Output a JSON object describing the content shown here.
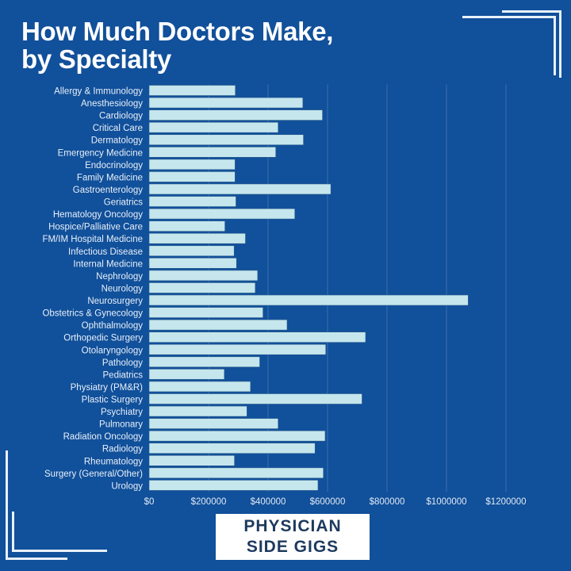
{
  "title_line1": "How Much Doctors Make,",
  "title_line2": "by Specialty",
  "logo": {
    "line1": "PHYSICIAN",
    "line2": "SIDE GIGS"
  },
  "colors": {
    "background": "#11509a",
    "bar": "#c5e6ec",
    "text": "#ffffff",
    "logo_text": "#1d3a5e"
  },
  "chart_data": {
    "type": "bar",
    "orientation": "horizontal",
    "title": "How Much Doctors Make, by Specialty",
    "xlabel": "",
    "ylabel": "",
    "xlim": [
      0,
      1200000
    ],
    "grid": true,
    "x_ticks": [
      "$0",
      "$200000",
      "$400000",
      "$600000",
      "$800000",
      "$1000000",
      "$1200000"
    ],
    "x_tick_values": [
      0,
      200000,
      400000,
      600000,
      800000,
      1000000,
      1200000
    ],
    "categories": [
      "Allergy & Immunology",
      "Anesthesiology",
      "Cardiology",
      "Critical Care",
      "Dermatology",
      "Emergency Medicine",
      "Endocrinology",
      "Family Medicine",
      "Gastroenterology",
      "Geriatrics",
      "Hematology Oncology",
      "Hospice/Palliative Care",
      "FM/IM Hospital Medicine",
      "Infectious Disease",
      "Internal Medicine",
      "Nephrology",
      "Neurology",
      "Neurosurgery",
      "Obstetrics & Gynecology",
      "Ophthalmology",
      "Orthopedic Surgery",
      "Otolaryngology",
      "Pathology",
      "Pediatrics",
      "Physiatry (PM&R)",
      "Plastic Surgery",
      "Psychiatry",
      "Pulmonary",
      "Radiation Oncology",
      "Radiology",
      "Rheumatology",
      "Surgery (General/Other)",
      "Urology"
    ],
    "values": [
      290000,
      517000,
      583000,
      434000,
      519000,
      426000,
      289000,
      289000,
      611000,
      292000,
      490000,
      255000,
      324000,
      286000,
      294000,
      365000,
      357000,
      1073000,
      383000,
      464000,
      728000,
      594000,
      372000,
      253000,
      341000,
      716000,
      329000,
      434000,
      592000,
      558000,
      287000,
      586000,
      568000
    ]
  }
}
